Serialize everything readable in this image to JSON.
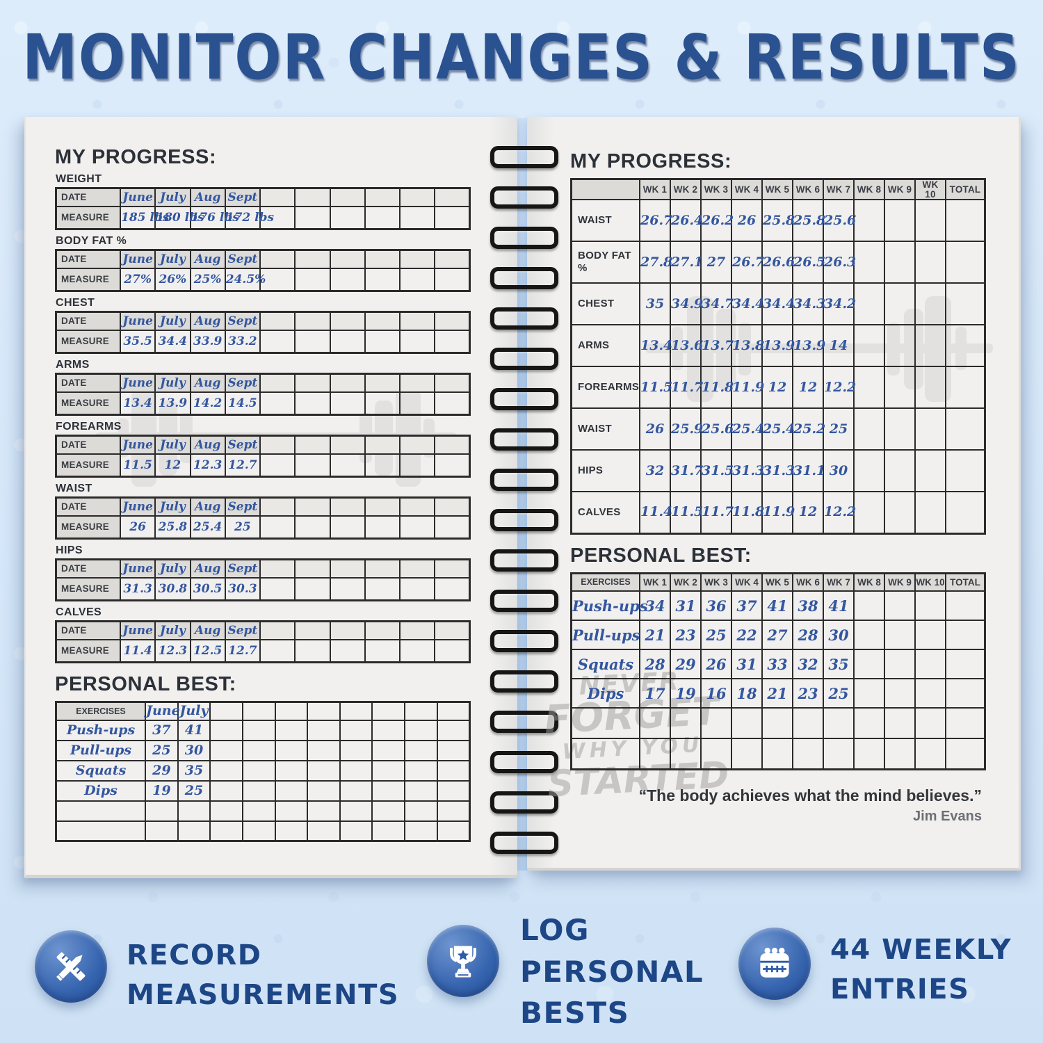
{
  "title": "MONITOR CHANGES & RESULTS",
  "left_page": {
    "progress_heading": "MY PROGRESS:",
    "date_label": "DATE",
    "measure_label": "MEASURE",
    "months": [
      "June",
      "July",
      "Aug",
      "Sept"
    ],
    "sections": [
      {
        "name": "WEIGHT",
        "measures": [
          "185 lbs",
          "180 lbs",
          "176 lbs",
          "172 lbs"
        ]
      },
      {
        "name": "BODY FAT %",
        "measures": [
          "27%",
          "26%",
          "25%",
          "24.5%"
        ]
      },
      {
        "name": "CHEST",
        "measures": [
          "35.5",
          "34.4",
          "33.9",
          "33.2"
        ]
      },
      {
        "name": "ARMS",
        "measures": [
          "13.4",
          "13.9",
          "14.2",
          "14.5"
        ]
      },
      {
        "name": "FOREARMS",
        "measures": [
          "11.5",
          "12",
          "12.3",
          "12.7"
        ]
      },
      {
        "name": "WAIST",
        "measures": [
          "26",
          "25.8",
          "25.4",
          "25"
        ]
      },
      {
        "name": "HIPS",
        "measures": [
          "31.3",
          "30.8",
          "30.5",
          "30.3"
        ]
      },
      {
        "name": "CALVES",
        "measures": [
          "11.4",
          "12.3",
          "12.5",
          "12.7"
        ]
      }
    ],
    "personal_best_heading": "PERSONAL BEST:",
    "pb_exercises_label": "EXERCISES",
    "pb_months": [
      "June",
      "July"
    ],
    "pb_rows": [
      {
        "exercise": "Push-ups",
        "values": [
          "37",
          "41"
        ]
      },
      {
        "exercise": "Pull-ups",
        "values": [
          "25",
          "30"
        ]
      },
      {
        "exercise": "Squats",
        "values": [
          "29",
          "35"
        ]
      },
      {
        "exercise": "Dips",
        "values": [
          "19",
          "25"
        ]
      }
    ],
    "pb_empty_rows": 2,
    "data_columns": 10
  },
  "right_page": {
    "progress_heading": "MY PROGRESS:",
    "week_headers": [
      "WK 1",
      "WK 2",
      "WK 3",
      "WK 4",
      "WK 5",
      "WK 6",
      "WK 7",
      "WK 8",
      "WK 9",
      "WK 10",
      "TOTAL"
    ],
    "rows": [
      {
        "label": "WAIST",
        "values": [
          "26.7",
          "26.4",
          "26.2",
          "26",
          "25.8",
          "25.8",
          "25.6"
        ]
      },
      {
        "label": "BODY FAT %",
        "values": [
          "27.8",
          "27.1",
          "27",
          "26.7",
          "26.6",
          "26.5",
          "26.3"
        ]
      },
      {
        "label": "CHEST",
        "values": [
          "35",
          "34.9",
          "34.7",
          "34.4",
          "34.4",
          "34.3",
          "34.2"
        ]
      },
      {
        "label": "ARMS",
        "values": [
          "13.4",
          "13.6",
          "13.7",
          "13.8",
          "13.9",
          "13.9",
          "14"
        ]
      },
      {
        "label": "FOREARMS",
        "values": [
          "11.5",
          "11.7",
          "11.8",
          "11.9",
          "12",
          "12",
          "12.2"
        ]
      },
      {
        "label": "WAIST",
        "values": [
          "26",
          "25.9",
          "25.6",
          "25.4",
          "25.4",
          "25.2",
          "25"
        ]
      },
      {
        "label": "HIPS",
        "values": [
          "32",
          "31.7",
          "31.5",
          "31.3",
          "31.3",
          "31.1",
          "30"
        ]
      },
      {
        "label": "CALVES",
        "values": [
          "11.4",
          "11.5",
          "11.7",
          "11.8",
          "11.9",
          "12",
          "12.2"
        ]
      }
    ],
    "personal_best_heading": "PERSONAL BEST:",
    "pb_exercises_label": "EXERCISES",
    "pb_rows": [
      {
        "exercise": "Push-ups",
        "values": [
          "34",
          "31",
          "36",
          "37",
          "41",
          "38",
          "41"
        ]
      },
      {
        "exercise": "Pull-ups",
        "values": [
          "21",
          "23",
          "25",
          "22",
          "27",
          "28",
          "30"
        ]
      },
      {
        "exercise": "Squats",
        "values": [
          "28",
          "29",
          "26",
          "31",
          "33",
          "32",
          "35"
        ]
      },
      {
        "exercise": "Dips",
        "values": [
          "17",
          "19",
          "16",
          "18",
          "21",
          "23",
          "25"
        ]
      }
    ],
    "pb_empty_rows": 2,
    "quote": "“The body achieves what the mind believes.”",
    "quote_author": "Jim Evans",
    "watermark_lines": [
      "NEVER",
      "FORGET",
      "WHY YOU",
      "STARTED"
    ]
  },
  "features": [
    {
      "icon": "pencil-ruler-icon",
      "lines": [
        "RECORD",
        "MEASUREMENTS"
      ]
    },
    {
      "icon": "trophy-icon",
      "lines": [
        "LOG",
        "PERSONAL",
        "BESTS"
      ]
    },
    {
      "icon": "calendar-icon",
      "lines": [
        "44 WEEKLY",
        "ENTRIES"
      ]
    }
  ],
  "colors": {
    "background": "#d5e7f8",
    "title": "#2a5190",
    "page": "#f1f0ee",
    "grid": "#2b2b2b",
    "header_cell": "#dcdbd8",
    "handwriting": "#33569f",
    "badge_blue": "#2e5ca6",
    "feature_text": "#1d4687"
  }
}
